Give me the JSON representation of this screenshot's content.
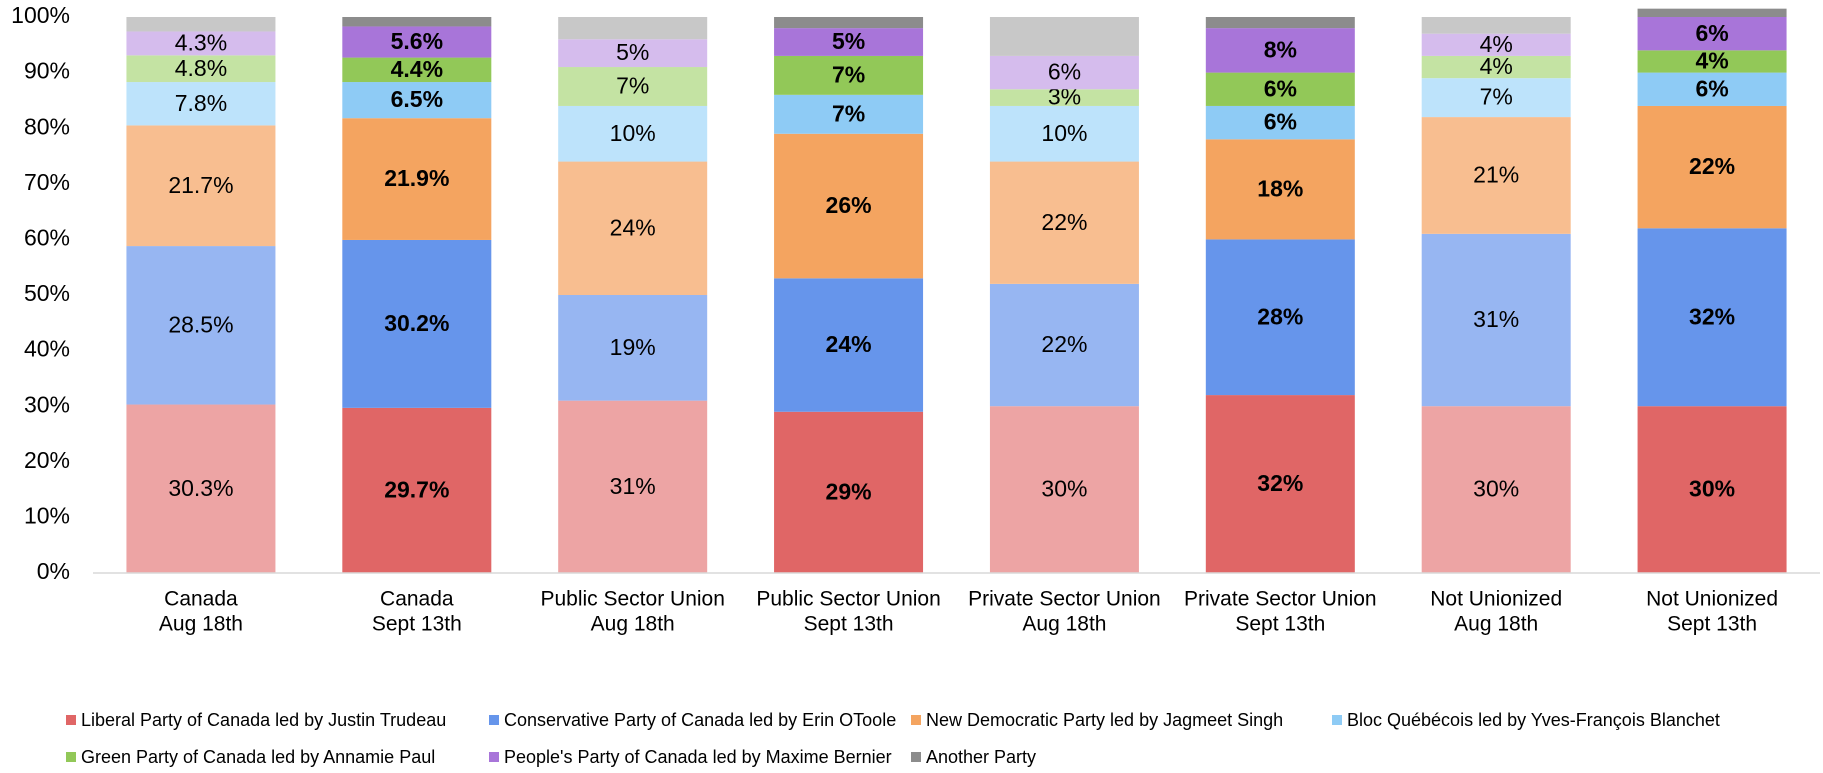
{
  "chart_data": {
    "type": "stacked_bar",
    "categories": [
      [
        "Canada",
        "Aug 18th"
      ],
      [
        "Canada",
        "Sept 13th"
      ],
      [
        "Public Sector Union",
        "Aug 18th"
      ],
      [
        "Public Sector Union",
        "Sept 13th"
      ],
      [
        "Private Sector Union",
        "Aug 18th"
      ],
      [
        "Private Sector Union",
        "Sept 13th"
      ],
      [
        "Not Unionized",
        "Aug 18th"
      ],
      [
        "Not Unionized",
        "Sept 13th"
      ]
    ],
    "bold_labels": [
      false,
      true,
      false,
      true,
      false,
      true,
      false,
      true
    ],
    "ylim": [
      0,
      100
    ],
    "yticks": [
      {
        "value": 0,
        "label": "0%"
      },
      {
        "value": 10,
        "label": "10%"
      },
      {
        "value": 20,
        "label": "20%"
      },
      {
        "value": 30,
        "label": "30%"
      },
      {
        "value": 40,
        "label": "40%"
      },
      {
        "value": 50,
        "label": "50%"
      },
      {
        "value": 60,
        "label": "60%"
      },
      {
        "value": 70,
        "label": "70%"
      },
      {
        "value": 80,
        "label": "80%"
      },
      {
        "value": 90,
        "label": "90%"
      },
      {
        "value": 100,
        "label": "100%"
      }
    ],
    "legend": "bottom",
    "series": [
      {
        "name": "Liberal Party of Canada led by Justin Trudeau",
        "color": "#e06666",
        "colors": [
          "#eda4a4",
          "#e06666",
          "#eda4a4",
          "#e06666",
          "#eda4a4",
          "#e06666",
          "#eda4a4",
          "#e06666"
        ],
        "values": [
          30.3,
          29.7,
          31,
          29,
          30,
          32,
          30,
          30
        ],
        "value_labels": [
          "30.3%",
          "29.7%",
          "31%",
          "29%",
          "30%",
          "32%",
          "30%",
          "30%"
        ]
      },
      {
        "name": "Conservative Party of Canada led by Erin OToole",
        "color": "#6695eb",
        "colors": [
          "#97b6f2",
          "#6695eb",
          "#97b6f2",
          "#6695eb",
          "#97b6f2",
          "#6695eb",
          "#97b6f2",
          "#6695eb"
        ],
        "values": [
          28.5,
          30.2,
          19,
          24,
          22,
          28,
          31,
          32
        ],
        "value_labels": [
          "28.5%",
          "30.2%",
          "19%",
          "24%",
          "22%",
          "28%",
          "31%",
          "32%"
        ]
      },
      {
        "name": "New Democratic Party led by Jagmeet Singh",
        "color": "#f4a460",
        "colors": [
          "#f8be90",
          "#f4a460",
          "#f8be90",
          "#f4a460",
          "#f8be90",
          "#f4a460",
          "#f8be90",
          "#f4a460"
        ],
        "values": [
          21.7,
          21.9,
          24,
          26,
          22,
          18,
          21,
          22
        ],
        "value_labels": [
          "21.7%",
          "21.9%",
          "24%",
          "26%",
          "22%",
          "18%",
          "21%",
          "22%"
        ]
      },
      {
        "name": "Bloc Québécois led by Yves-François Blanchet",
        "color": "#8ecbf5",
        "colors": [
          "#bde3fb",
          "#8ecbf5",
          "#bde3fb",
          "#8ecbf5",
          "#bde3fb",
          "#8ecbf5",
          "#bde3fb",
          "#8ecbf5"
        ],
        "values": [
          7.8,
          6.5,
          10,
          7,
          10,
          6,
          7,
          6
        ],
        "value_labels": [
          "7.8%",
          "6.5%",
          "10%",
          "7%",
          "10%",
          "6%",
          "7%",
          "6%"
        ]
      },
      {
        "name": "Green Party of Canada led by Annamie Paul",
        "color": "#92c858",
        "colors": [
          "#c4e3a3",
          "#92c858",
          "#c4e3a3",
          "#92c858",
          "#c4e3a3",
          "#92c858",
          "#c4e3a3",
          "#92c858"
        ],
        "values": [
          4.8,
          4.4,
          7,
          7,
          3,
          6,
          4,
          4
        ],
        "value_labels": [
          "4.8%",
          "4.4%",
          "7%",
          "7%",
          "3%",
          "6%",
          "4%",
          "4%"
        ]
      },
      {
        "name": "People's Party of Canada led by Maxime Bernier",
        "color": "#a875d9",
        "colors": [
          "#d5bced",
          "#a875d9",
          "#d5bced",
          "#a875d9",
          "#d5bced",
          "#a875d9",
          "#d5bced",
          "#a875d9"
        ],
        "values": [
          4.3,
          5.6,
          5,
          5,
          6,
          8,
          4,
          6
        ],
        "value_labels": [
          "4.3%",
          "5.6%",
          "5%",
          "5%",
          "6%",
          "8%",
          "4%",
          "6%"
        ]
      },
      {
        "name": "Another Party",
        "color": "#8c8c8c",
        "colors": [
          "#c8c8c8",
          "#8c8c8c",
          "#c8c8c8",
          "#8c8c8c",
          "#c8c8c8",
          "#8c8c8c",
          "#c8c8c8",
          "#8c8c8c"
        ],
        "values": [
          2.6,
          1.7,
          4,
          2,
          7,
          2,
          3,
          1.5
        ]
      }
    ]
  }
}
